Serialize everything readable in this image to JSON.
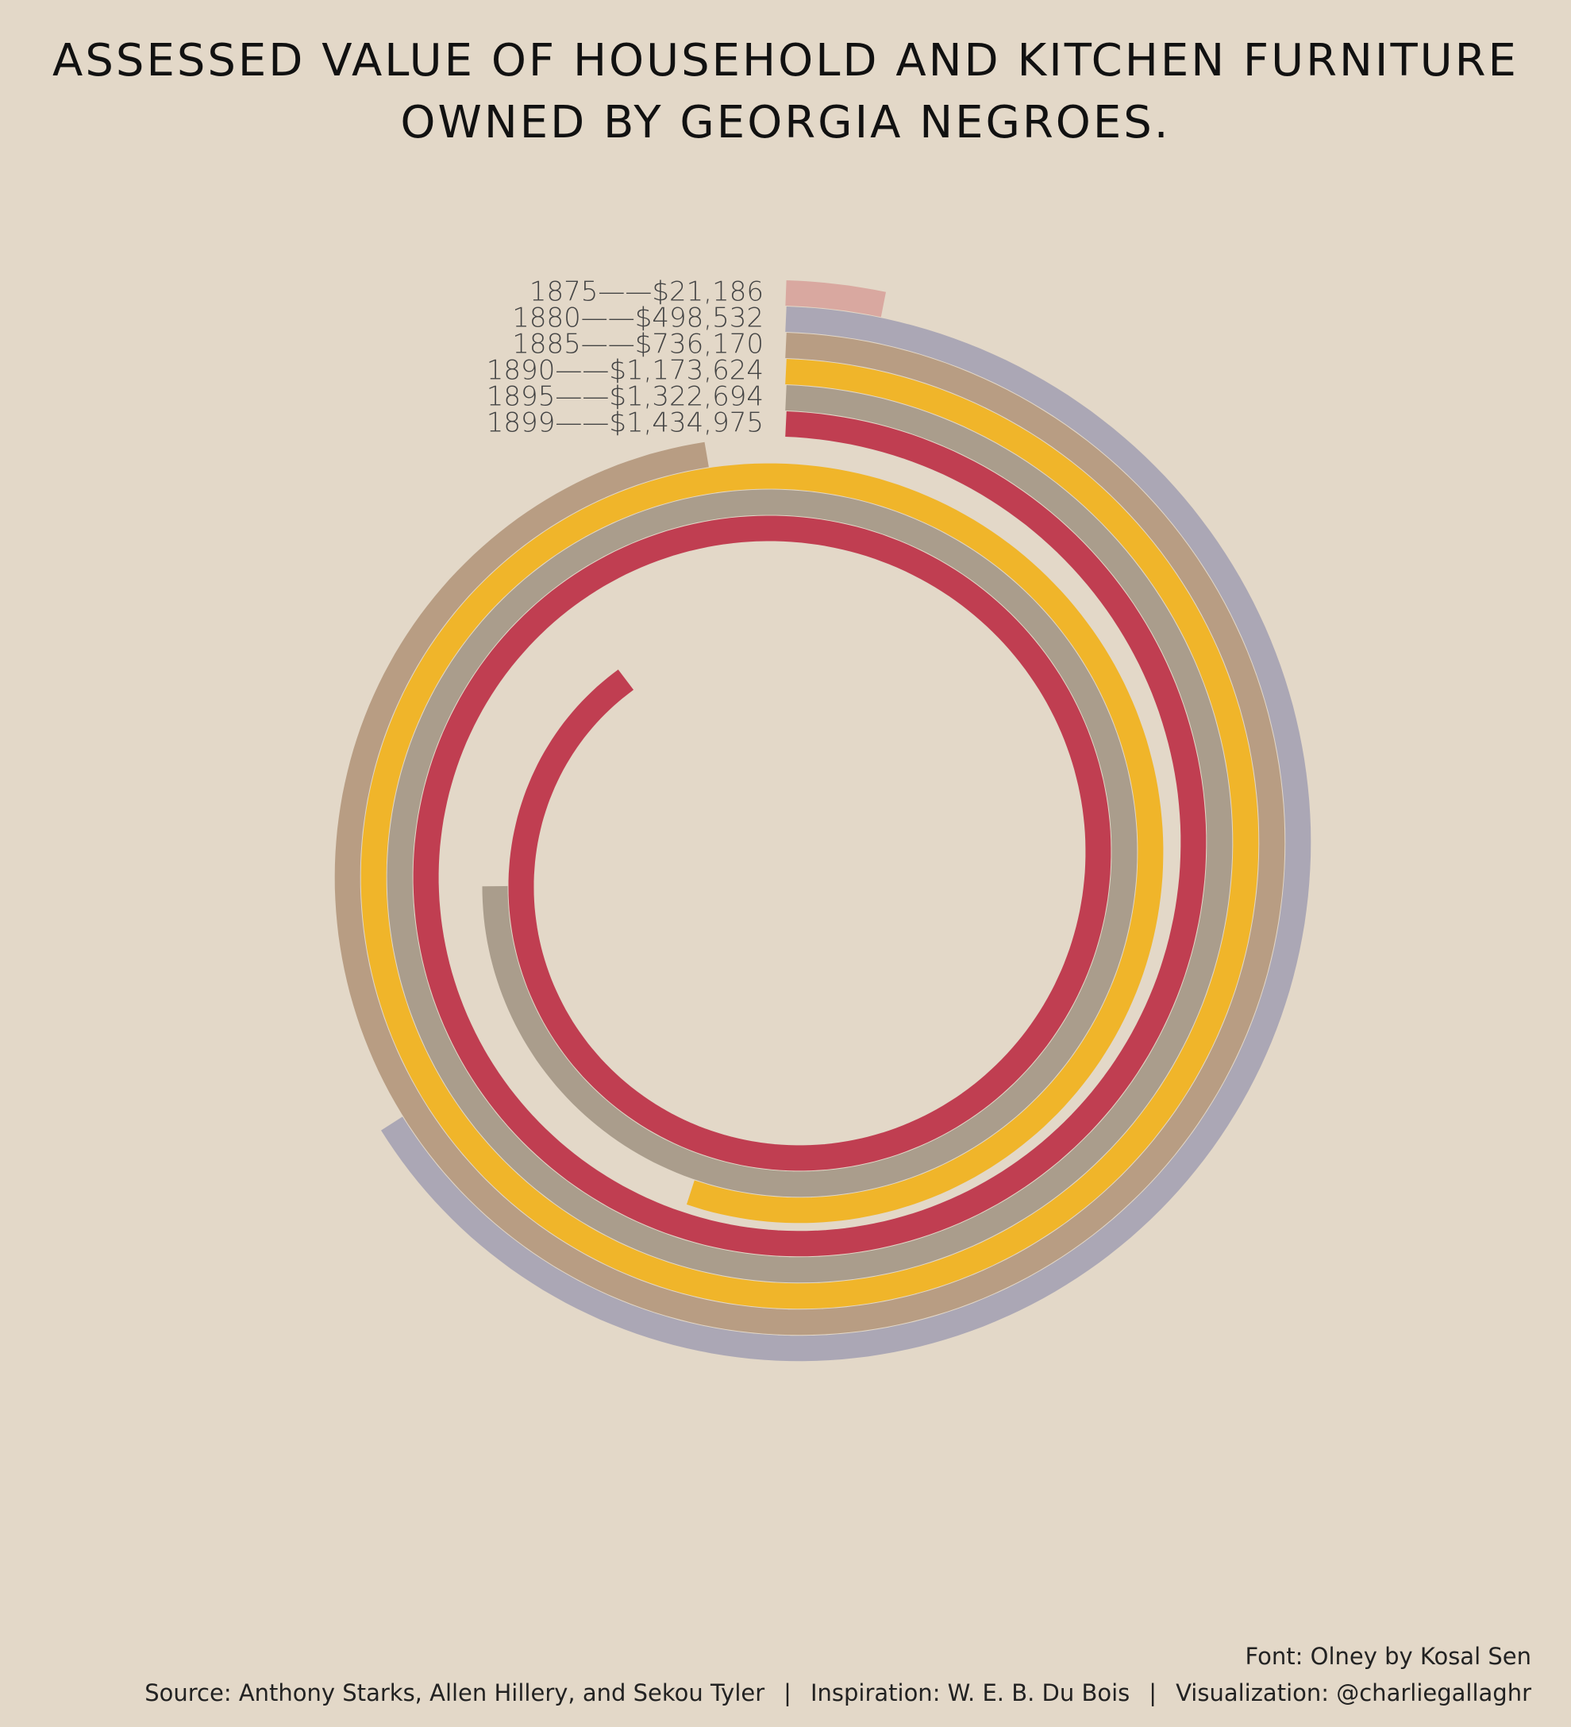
{
  "title": {
    "line1": "ASSESSED VALUE OF HOUSEHOLD AND KITCHEN FURNITURE",
    "line2": "OWNED BY GEORGIA NEGROES."
  },
  "footer": {
    "font_credit": "Font: Olney by Kosal Sen",
    "source": "Source:  Anthony Starks, Allen Hillery, and Sekou Tyler",
    "separator": "|",
    "inspiration": "Inspiration: W. E. B. Du Bois",
    "visualization": "Visualization: @charliegallaghr"
  },
  "chart_data": {
    "type": "spiral-bar",
    "title": "ASSESSED VALUE OF HOUSEHOLD AND KITCHEN FURNITURE OWNED BY GEORGIA NEGROES.",
    "series": [
      {
        "year": "1875",
        "value": 21186,
        "label": "1875——$21,186",
        "color": "#d9a8a0"
      },
      {
        "year": "1880",
        "value": 498532,
        "label": "1880——$498,532",
        "color": "#aba7b5"
      },
      {
        "year": "1885",
        "value": 736170,
        "label": "1885——$736,170",
        "color": "#b89d83"
      },
      {
        "year": "1890",
        "value": 1173624,
        "label": "1890——$1,173,624",
        "color": "#f0b52a"
      },
      {
        "year": "1895",
        "value": 1322694,
        "label": "1895——$1,322,694",
        "color": "#aa9d8c"
      },
      {
        "year": "1899",
        "value": 1434975,
        "label": "1899——$1,434,975",
        "color": "#c03e51"
      }
    ]
  }
}
